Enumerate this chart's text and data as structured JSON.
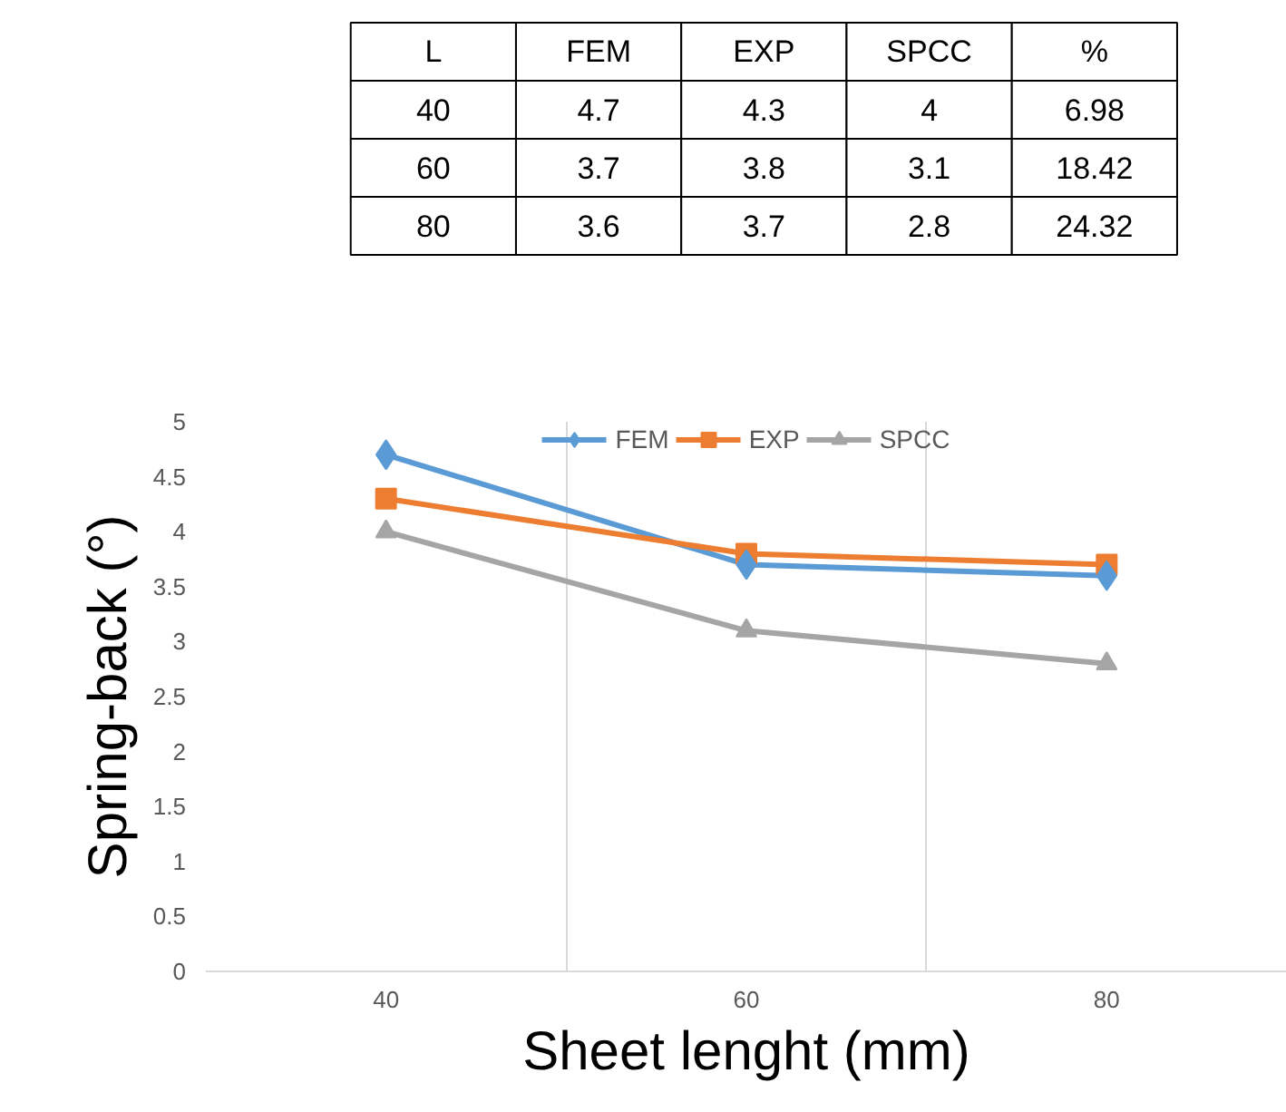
{
  "chart_data": {
    "type": "line",
    "xlabel": "Sheet lenght (mm)",
    "ylabel": "Spring-back (°)",
    "categories": [
      "40",
      "60",
      "80"
    ],
    "series": [
      {
        "name": "FEM",
        "color": "#5b9bd5",
        "marker": "diamond",
        "values": [
          4.7,
          3.7,
          3.6
        ]
      },
      {
        "name": "EXP",
        "color": "#ed7d31",
        "marker": "square",
        "values": [
          4.3,
          3.8,
          3.7
        ]
      },
      {
        "name": "SPCC",
        "color": "#a5a5a5",
        "marker": "triangle",
        "values": [
          4,
          3.1,
          2.8
        ]
      }
    ],
    "ylim": [
      0,
      5
    ],
    "yticks": [
      0,
      0.5,
      1,
      1.5,
      2,
      2.5,
      3,
      3.5,
      4,
      4.5,
      5
    ],
    "grid": "x",
    "legend": "top",
    "annotations": [
      "L",
      "FEM",
      "EXP",
      "SPCC",
      "%",
      "40",
      "4.7",
      "4.3",
      "4",
      "6.98",
      "60",
      "3.7",
      "3.8",
      "3.1",
      "18.42",
      "80",
      "3.6",
      "3.7",
      "2.8",
      "24.32"
    ]
  }
}
